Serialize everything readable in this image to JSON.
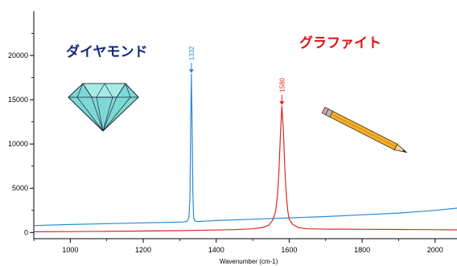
{
  "chart_data": {
    "type": "line",
    "xlabel": "Wavenumber (cm-1)",
    "ylabel": "",
    "xlim": [
      900,
      2060
    ],
    "ylim": [
      -700,
      25000
    ],
    "xticks": [
      1000,
      1200,
      1400,
      1600,
      1800,
      2000
    ],
    "yticks": [
      0,
      5000,
      10000,
      15000,
      20000
    ],
    "grid": false,
    "series": [
      {
        "name": "ダイヤモンド",
        "color": "#2a8ad8",
        "points": [
          [
            900,
            780
          ],
          [
            1000,
            900
          ],
          [
            1100,
            1000
          ],
          [
            1200,
            1090
          ],
          [
            1280,
            1150
          ],
          [
            1310,
            1190
          ],
          [
            1320,
            1270
          ],
          [
            1325,
            1600
          ],
          [
            1328,
            4000
          ],
          [
            1330,
            12000
          ],
          [
            1332,
            17900
          ],
          [
            1334,
            12000
          ],
          [
            1336,
            4500
          ],
          [
            1338,
            1700
          ],
          [
            1342,
            1300
          ],
          [
            1350,
            1240
          ],
          [
            1400,
            1350
          ],
          [
            1500,
            1500
          ],
          [
            1600,
            1650
          ],
          [
            1700,
            1800
          ],
          [
            1800,
            2000
          ],
          [
            1900,
            2200
          ],
          [
            2000,
            2500
          ],
          [
            2060,
            2750
          ]
        ]
      },
      {
        "name": "グラファイト",
        "color": "#e02525",
        "points": [
          [
            900,
            80
          ],
          [
            1000,
            100
          ],
          [
            1100,
            130
          ],
          [
            1200,
            160
          ],
          [
            1300,
            210
          ],
          [
            1400,
            280
          ],
          [
            1450,
            330
          ],
          [
            1500,
            420
          ],
          [
            1530,
            580
          ],
          [
            1545,
            850
          ],
          [
            1555,
            1400
          ],
          [
            1563,
            2400
          ],
          [
            1568,
            4200
          ],
          [
            1572,
            7000
          ],
          [
            1576,
            11000
          ],
          [
            1580,
            14300
          ],
          [
            1584,
            11500
          ],
          [
            1588,
            7200
          ],
          [
            1592,
            4300
          ],
          [
            1596,
            2500
          ],
          [
            1600,
            1500
          ],
          [
            1610,
            900
          ],
          [
            1625,
            550
          ],
          [
            1650,
            420
          ],
          [
            1700,
            370
          ],
          [
            1750,
            380
          ],
          [
            1800,
            360
          ],
          [
            1900,
            340
          ],
          [
            2000,
            320
          ],
          [
            2060,
            300
          ]
        ]
      }
    ],
    "annotations": [
      {
        "text": "1332",
        "x": 1332,
        "series": 0
      },
      {
        "text": "1580",
        "x": 1580,
        "series": 1
      }
    ]
  },
  "labels": {
    "diamond": {
      "text": "ダイヤモンド",
      "color": "#12287a"
    },
    "graphite": {
      "text": "グラファイト",
      "color": "#e01010"
    }
  },
  "icons": {
    "diamond": "diamond-icon",
    "pencil": "pencil-icon"
  }
}
